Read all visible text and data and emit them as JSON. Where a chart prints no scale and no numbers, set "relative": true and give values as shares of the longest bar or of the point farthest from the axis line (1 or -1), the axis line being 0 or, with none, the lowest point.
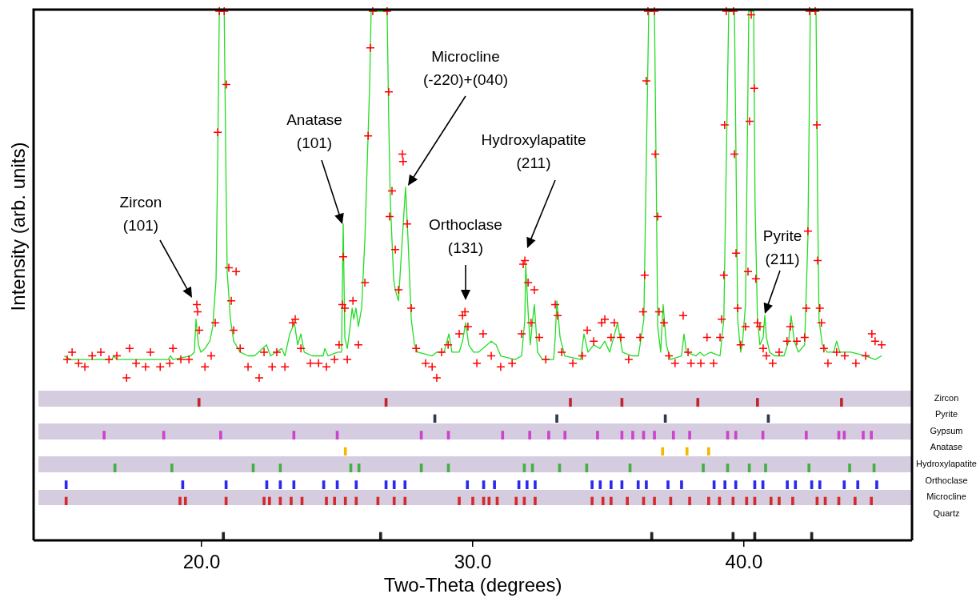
{
  "chart_data": [
    {
      "type": "scatter",
      "ylabel": "Intensity (arb. units)",
      "relative": true,
      "xlim": [
        13.8,
        46.2
      ],
      "tick_labels": false,
      "annotations": [
        "Zircon (101)",
        "Anatase (101)",
        "Microcline (-220)+(040)",
        "Orthoclase (131)",
        "Hydroxylapatite (211)",
        "Pyrite (211)"
      ],
      "series": [
        {
          "type": "scatter",
          "marker": "cross",
          "color": "#ff0000",
          "x": [
            15.04,
            15.22,
            15.46,
            15.69,
            15.96,
            16.28,
            16.58,
            16.87,
            17.23,
            17.34,
            17.58,
            17.93,
            18.11,
            18.47,
            18.82,
            18.94,
            19.23,
            19.53,
            19.82,
            19.85,
            19.91,
            20.12,
            20.35,
            20.5,
            20.59,
            20.65,
            20.83,
            20.91,
            21.0,
            21.09,
            21.18,
            21.27,
            21.42,
            21.71,
            22.12,
            22.3,
            22.6,
            22.77,
            23.07,
            23.36,
            23.45,
            23.66,
            24.01,
            24.31,
            24.6,
            24.9,
            25.07,
            25.19,
            25.22,
            25.28,
            25.37,
            25.58,
            25.78,
            26.02,
            26.14,
            26.22,
            26.31,
            26.84,
            26.9,
            26.93,
            27.02,
            27.14,
            27.26,
            27.4,
            27.43,
            27.58,
            27.73,
            27.91,
            28.26,
            28.5,
            28.67,
            28.85,
            29.09,
            29.5,
            29.62,
            29.71,
            29.82,
            30.15,
            30.38,
            30.68,
            31.03,
            31.45,
            31.8,
            31.86,
            31.92,
            32.04,
            32.15,
            32.27,
            32.45,
            32.69,
            33.04,
            33.13,
            33.28,
            33.69,
            34.04,
            34.22,
            34.46,
            34.75,
            34.87,
            35.1,
            35.22,
            35.46,
            35.75,
            36.17,
            36.28,
            36.34,
            36.4,
            36.46,
            36.7,
            36.73,
            36.82,
            36.87,
            37.05,
            37.23,
            37.46,
            37.76,
            37.94,
            38.05,
            38.41,
            38.64,
            38.88,
            39.12,
            39.18,
            39.26,
            39.29,
            39.35,
            39.62,
            39.65,
            39.71,
            39.77,
            39.88,
            40.06,
            40.15,
            40.21,
            40.27,
            40.38,
            40.44,
            40.5,
            40.59,
            40.71,
            40.83,
            41.06,
            41.3,
            41.59,
            41.71,
            41.95,
            42.24,
            42.3,
            42.36,
            42.42,
            42.63,
            42.69,
            42.72,
            42.8,
            42.86,
            42.95,
            43.1,
            43.42,
            43.72,
            44.13,
            44.49,
            44.72,
            44.84,
            45.08
          ],
          "values": [
            0.05,
            0.07,
            0.04,
            0.03,
            0.06,
            0.07,
            0.05,
            0.06,
            0.0,
            0.08,
            0.04,
            0.03,
            0.07,
            0.03,
            0.04,
            0.08,
            0.05,
            0.05,
            0.2,
            0.18,
            0.13,
            0.03,
            0.06,
            0.15,
            0.67,
            1.0,
            1.0,
            0.8,
            0.3,
            0.21,
            0.13,
            0.29,
            0.08,
            0.03,
            0.0,
            0.07,
            0.03,
            0.07,
            0.03,
            0.15,
            0.16,
            0.08,
            0.04,
            0.04,
            0.03,
            0.05,
            0.09,
            0.2,
            0.33,
            0.19,
            0.05,
            0.21,
            0.09,
            0.26,
            0.66,
            0.9,
            1.0,
            1.0,
            0.78,
            0.44,
            0.51,
            0.35,
            0.24,
            0.61,
            0.59,
            0.42,
            0.19,
            0.08,
            0.04,
            0.03,
            0.0,
            0.07,
            0.09,
            0.12,
            0.17,
            0.18,
            0.14,
            0.04,
            0.12,
            0.06,
            0.03,
            0.04,
            0.12,
            0.31,
            0.32,
            0.26,
            0.15,
            0.24,
            0.11,
            0.05,
            0.2,
            0.17,
            0.07,
            0.04,
            0.06,
            0.13,
            0.1,
            0.15,
            0.16,
            0.11,
            0.15,
            0.11,
            0.05,
            0.11,
            0.18,
            0.28,
            0.81,
            1.0,
            1.0,
            0.61,
            0.44,
            0.18,
            0.15,
            0.06,
            0.04,
            0.17,
            0.07,
            0.04,
            0.04,
            0.11,
            0.04,
            0.11,
            0.16,
            0.28,
            0.69,
            1.0,
            1.0,
            0.61,
            0.34,
            0.19,
            0.09,
            0.14,
            0.29,
            0.7,
            0.99,
            0.79,
            0.27,
            0.15,
            0.14,
            0.08,
            0.06,
            0.04,
            0.07,
            0.1,
            0.14,
            0.1,
            0.11,
            0.19,
            0.4,
            1.0,
            1.0,
            0.69,
            0.32,
            0.19,
            0.15,
            0.08,
            0.04,
            0.07,
            0.06,
            0.04,
            0.06,
            0.12,
            0.1,
            0.09
          ]
        },
        {
          "type": "line",
          "marker": "none",
          "color": "#22dd22",
          "x": [
            14.93,
            15.16,
            16.7,
            16.75,
            16.87,
            18.76,
            18.85,
            18.94,
            19.59,
            19.73,
            19.79,
            19.88,
            19.97,
            20.12,
            20.3,
            20.41,
            20.53,
            20.59,
            20.65,
            20.83,
            20.89,
            20.94,
            21.06,
            21.18,
            21.42,
            21.71,
            21.95,
            22.39,
            22.54,
            22.95,
            23.07,
            23.25,
            23.42,
            23.54,
            23.66,
            23.78,
            24.07,
            24.48,
            24.54,
            24.66,
            25.02,
            25.16,
            25.22,
            25.28,
            25.37,
            25.46,
            25.55,
            25.61,
            25.69,
            25.78,
            25.9,
            26.02,
            26.2,
            26.25,
            26.84,
            26.9,
            26.96,
            27.08,
            27.14,
            27.26,
            27.4,
            27.52,
            27.61,
            27.73,
            27.85,
            27.97,
            28.5,
            28.67,
            28.94,
            29.12,
            29.23,
            29.38,
            29.5,
            29.62,
            29.74,
            29.85,
            30.03,
            30.21,
            30.68,
            30.86,
            31.03,
            31.56,
            31.8,
            31.92,
            31.95,
            32.04,
            32.12,
            32.21,
            32.27,
            32.39,
            32.57,
            32.98,
            33.04,
            33.1,
            33.22,
            33.39,
            33.98,
            34.1,
            34.25,
            34.46,
            34.69,
            34.87,
            35.05,
            35.34,
            35.52,
            35.87,
            36.11,
            36.31,
            36.4,
            36.49,
            36.7,
            36.76,
            36.82,
            36.93,
            37.02,
            37.14,
            37.29,
            37.7,
            37.79,
            37.88,
            38.23,
            38.38,
            38.53,
            38.76,
            39.12,
            39.26,
            39.35,
            39.44,
            39.65,
            39.71,
            39.77,
            39.88,
            39.94,
            40.06,
            40.18,
            40.36,
            40.41,
            40.5,
            40.59,
            40.71,
            40.77,
            40.83,
            40.95,
            41.12,
            41.48,
            41.65,
            41.74,
            41.86,
            42.01,
            42.24,
            42.36,
            42.45,
            42.66,
            42.72,
            42.77,
            42.89,
            43.07,
            43.31,
            43.42,
            43.54,
            43.95,
            44.49,
            44.84,
            45.08
          ],
          "values": [
            0.06,
            0.05,
            0.05,
            0.06,
            0.05,
            0.05,
            0.06,
            0.05,
            0.06,
            0.07,
            0.16,
            0.09,
            0.07,
            0.08,
            0.1,
            0.14,
            0.27,
            0.59,
            1.0,
            1.0,
            0.59,
            0.29,
            0.16,
            0.1,
            0.07,
            0.06,
            0.06,
            0.09,
            0.06,
            0.08,
            0.06,
            0.12,
            0.15,
            0.09,
            0.12,
            0.07,
            0.06,
            0.06,
            0.08,
            0.06,
            0.07,
            0.07,
            0.42,
            0.11,
            0.08,
            0.13,
            0.19,
            0.16,
            0.19,
            0.14,
            0.19,
            0.38,
            0.81,
            1.0,
            1.0,
            0.7,
            0.48,
            0.27,
            0.24,
            0.21,
            0.38,
            0.52,
            0.38,
            0.16,
            0.09,
            0.07,
            0.06,
            0.07,
            0.07,
            0.12,
            0.07,
            0.07,
            0.07,
            0.1,
            0.15,
            0.09,
            0.07,
            0.07,
            0.1,
            0.09,
            0.06,
            0.05,
            0.06,
            0.16,
            0.31,
            0.18,
            0.09,
            0.16,
            0.2,
            0.07,
            0.05,
            0.05,
            0.11,
            0.21,
            0.11,
            0.06,
            0.05,
            0.12,
            0.07,
            0.09,
            0.08,
            0.1,
            0.07,
            0.15,
            0.07,
            0.06,
            0.06,
            0.16,
            0.59,
            1.0,
            1.0,
            0.59,
            0.14,
            0.07,
            0.2,
            0.09,
            0.05,
            0.06,
            0.12,
            0.07,
            0.06,
            0.07,
            0.06,
            0.07,
            0.06,
            0.16,
            0.59,
            1.0,
            1.0,
            0.59,
            0.16,
            0.07,
            0.09,
            0.2,
            1.0,
            1.0,
            0.48,
            0.16,
            0.09,
            0.11,
            0.17,
            0.11,
            0.07,
            0.06,
            0.06,
            0.1,
            0.17,
            0.1,
            0.07,
            0.09,
            0.38,
            1.0,
            1.0,
            0.48,
            0.16,
            0.09,
            0.07,
            0.07,
            0.1,
            0.07,
            0.07,
            0.06,
            0.05,
            0.06
          ]
        }
      ]
    },
    {
      "type": "bar",
      "relative": true,
      "xlim": [
        13.8,
        46.2
      ],
      "tick_labels": false,
      "series": [
        {
          "name": "Zircon",
          "color": "#c0272d",
          "x": [
            19.9,
            26.8,
            33.6,
            35.5,
            38.3,
            40.5,
            43.6
          ],
          "values": [
            1,
            1,
            1,
            1,
            1,
            1,
            1
          ]
        }
      ]
    },
    {
      "type": "bar",
      "relative": true,
      "xlim": [
        13.8,
        46.2
      ],
      "tick_labels": false,
      "series": [
        {
          "name": "Pyrite",
          "color": "#2f3a4a",
          "x": [
            28.6,
            33.1,
            37.1,
            40.9
          ],
          "values": [
            1,
            1,
            1,
            1
          ]
        }
      ]
    },
    {
      "type": "bar",
      "relative": true,
      "xlim": [
        13.8,
        46.2
      ],
      "tick_labels": false,
      "series": [
        {
          "name": "Gypsum",
          "color": "#cc44cc",
          "x": [
            16.4,
            18.6,
            20.7,
            23.4,
            25.0,
            28.1,
            29.1,
            31.1,
            32.1,
            32.8,
            33.4,
            34.6,
            35.5,
            35.9,
            36.3,
            36.7,
            37.4,
            38.0,
            39.4,
            39.7,
            40.7,
            42.3,
            43.5,
            43.7,
            44.4,
            44.7
          ],
          "values": [
            1,
            1,
            1,
            1,
            1,
            1,
            1,
            1,
            1,
            1,
            1,
            1,
            1,
            1,
            1,
            1,
            1,
            1,
            1,
            1,
            1,
            1,
            1,
            1,
            1,
            1
          ]
        }
      ]
    },
    {
      "type": "bar",
      "relative": true,
      "xlim": [
        13.8,
        46.2
      ],
      "tick_labels": false,
      "series": [
        {
          "name": "Anatase",
          "color": "#f5b800",
          "x": [
            25.3,
            37.0,
            37.9,
            38.7
          ],
          "values": [
            1,
            1,
            1,
            1
          ]
        }
      ]
    },
    {
      "type": "bar",
      "relative": true,
      "xlim": [
        13.8,
        46.2
      ],
      "tick_labels": false,
      "series": [
        {
          "name": "Hydroxylapatite",
          "color": "#44b044",
          "x": [
            16.8,
            18.9,
            21.9,
            22.9,
            25.5,
            25.8,
            28.1,
            29.1,
            31.9,
            32.2,
            33.2,
            34.2,
            35.8,
            38.5,
            39.4,
            40.2,
            40.8,
            42.4,
            43.9,
            44.8
          ],
          "values": [
            1,
            1,
            1,
            1,
            1,
            1,
            1,
            1,
            1,
            1,
            1,
            1,
            1,
            1,
            1,
            1,
            1,
            1,
            1,
            1
          ]
        }
      ]
    },
    {
      "type": "bar",
      "relative": true,
      "xlim": [
        13.8,
        46.2
      ],
      "tick_labels": false,
      "series": [
        {
          "name": "Orthoclase",
          "color": "#2a2aee",
          "x": [
            15.0,
            19.3,
            20.9,
            22.4,
            22.9,
            23.4,
            24.5,
            25.0,
            25.7,
            26.8,
            27.1,
            27.5,
            29.8,
            30.4,
            30.8,
            31.7,
            32.0,
            32.3,
            34.4,
            34.7,
            35.1,
            35.5,
            36.1,
            36.4,
            37.2,
            37.7,
            38.9,
            39.3,
            39.7,
            40.4,
            40.7,
            41.6,
            41.9,
            42.5,
            42.8,
            43.7,
            44.2,
            44.9
          ],
          "values": [
            1,
            1,
            1,
            1,
            1,
            1,
            1,
            1,
            1,
            1,
            1,
            1,
            1,
            1,
            1,
            1,
            1,
            1,
            1,
            1,
            1,
            1,
            1,
            1,
            1,
            1,
            1,
            1,
            1,
            1,
            1,
            1,
            1,
            1,
            1,
            1,
            1,
            1
          ]
        }
      ]
    },
    {
      "type": "bar",
      "relative": true,
      "xlim": [
        13.8,
        46.2
      ],
      "tick_labels": false,
      "series": [
        {
          "name": "Microcline",
          "color": "#d42a2a",
          "x": [
            15.0,
            19.2,
            19.4,
            20.9,
            22.3,
            22.5,
            22.9,
            23.3,
            23.7,
            24.6,
            24.9,
            25.3,
            25.7,
            26.5,
            27.1,
            27.5,
            29.5,
            30.0,
            30.4,
            30.6,
            30.9,
            31.6,
            31.9,
            32.3,
            34.4,
            34.8,
            35.1,
            35.7,
            36.3,
            36.7,
            37.3,
            38.0,
            38.7,
            39.1,
            39.6,
            40.1,
            40.4,
            41.0,
            41.3,
            41.8,
            42.7,
            43.0,
            43.5,
            44.1,
            44.7
          ],
          "values": [
            1,
            1,
            1,
            1,
            1,
            1,
            1,
            1,
            1,
            1,
            1,
            1,
            1,
            1,
            1,
            1,
            1,
            1,
            1,
            1,
            1,
            1,
            1,
            1,
            1,
            1,
            1,
            1,
            1,
            1,
            1,
            1,
            1,
            1,
            1,
            1,
            1,
            1,
            1,
            1,
            1,
            1,
            1,
            1,
            1
          ]
        }
      ]
    },
    {
      "type": "bar",
      "relative": true,
      "xlabel": "Two-Theta (degrees)",
      "xlim": [
        13.8,
        46.2
      ],
      "xticks": [
        {
          "value": 20,
          "label": "20.0"
        },
        {
          "value": 30,
          "label": "30.0"
        },
        {
          "value": 40,
          "label": "40.0"
        }
      ],
      "tick_labels": "x",
      "series": [
        {
          "name": "Quartz",
          "color": "#222222",
          "x": [
            20.8,
            26.6,
            36.6,
            39.6,
            40.4,
            42.5
          ],
          "values": [
            1,
            1,
            1,
            1,
            1,
            1
          ]
        }
      ]
    }
  ]
}
